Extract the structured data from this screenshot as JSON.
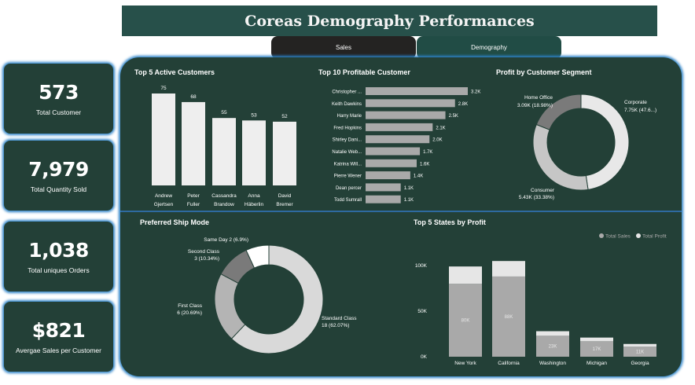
{
  "title": "Coreas Demography Performances",
  "tabs": [
    {
      "label": "Sales"
    },
    {
      "label": "Demography"
    }
  ],
  "kpis": [
    {
      "value": "573",
      "label": "Total Customer"
    },
    {
      "value": "7,979",
      "label": "Total Quantity Sold"
    },
    {
      "value": "1,038",
      "label": "Total uniques Orders"
    },
    {
      "value": "$821",
      "label": "Avergae Sales per Customer"
    }
  ],
  "panels": {
    "active_customers": "Top 5 Active Customers",
    "profitable_customers": "Top 10 Profitable Customer",
    "segment_profit": "Profit by Customer Segment",
    "ship_mode": "Preferred Ship Mode",
    "states_profit": "Top 5 States by Profit"
  },
  "colors": {
    "panel": "#234037",
    "accent": "#2d83c8",
    "bar_light": "#eeeeee",
    "bar_gray": "#a9a9a9"
  },
  "chart_data": [
    {
      "type": "bar",
      "title": "Top 5 Active Customers",
      "categories": [
        [
          "Andrew",
          "Gjertsen"
        ],
        [
          "Peter",
          "Fuller"
        ],
        [
          "Cassandra",
          "Brandow"
        ],
        [
          "Anna",
          "Häberlin"
        ],
        [
          "David",
          "Bremer"
        ]
      ],
      "values": [
        75,
        68,
        55,
        53,
        52
      ],
      "ylim": [
        0,
        80
      ]
    },
    {
      "type": "bar",
      "orientation": "horizontal",
      "title": "Top 10 Profitable Customer",
      "categories": [
        "Christopher ...",
        "Keith Dawkins",
        "Harry Marie",
        "Fred Hopkins",
        "Shirley Dani...",
        "Natalie Web...",
        "Katrina Will...",
        "Pierre Wener",
        "Dean percer",
        "Todd Sumrall"
      ],
      "values": [
        3.2,
        2.8,
        2.5,
        2.1,
        2.0,
        1.7,
        1.6,
        1.4,
        1.1,
        1.1
      ],
      "labels": [
        "3.2K",
        "2.8K",
        "2.5K",
        "2.1K",
        "2.0K",
        "1.7K",
        "1.6K",
        "1.4K",
        "1.1K",
        "1.1K"
      ]
    },
    {
      "type": "pie",
      "title": "Profit by Customer Segment",
      "slices": [
        {
          "name": "Corporate",
          "label": "7.75K (47.6...)",
          "value": 47.64,
          "color": "#e8e8e8"
        },
        {
          "name": "Consumer",
          "label": "5.43K (33.38%)",
          "value": 33.38,
          "color": "#c6c6c6"
        },
        {
          "name": "Home Office",
          "label": "3.09K (18.98%)",
          "value": 18.98,
          "color": "#7a7a7a"
        }
      ]
    },
    {
      "type": "pie",
      "title": "Preferred Ship Mode",
      "slices": [
        {
          "name": "Standard Class",
          "label": "18 (62.07%)",
          "value": 62.07,
          "color": "#d9d9d9"
        },
        {
          "name": "First Class",
          "label": "6 (20.69%)",
          "value": 20.69,
          "color": "#b4b4b4"
        },
        {
          "name": "Second Class",
          "label": "3 (10.34%)",
          "value": 10.34,
          "color": "#7a7a7a"
        },
        {
          "name": "Same Day",
          "label": "2 (6.9%)",
          "value": 6.9,
          "color": "#ffffff"
        }
      ]
    },
    {
      "type": "bar",
      "stacked": true,
      "title": "Top 5 States by Profit",
      "categories": [
        "New York",
        "California",
        "Washington",
        "Michigan",
        "Georgia"
      ],
      "series": [
        {
          "name": "Total Sales",
          "values": [
            80,
            88,
            23,
            17,
            11
          ],
          "labels": [
            "80K",
            "88K",
            "23K",
            "17K",
            "11K"
          ],
          "color": "#a9a9a9"
        },
        {
          "name": "Total Profit",
          "values": [
            19,
            17,
            5,
            4,
            3
          ],
          "color": "#e6e6e6"
        }
      ],
      "yticks": [
        "100K",
        "50K",
        "0K"
      ],
      "ylim": [
        0,
        100
      ],
      "legend": "top-right"
    }
  ]
}
